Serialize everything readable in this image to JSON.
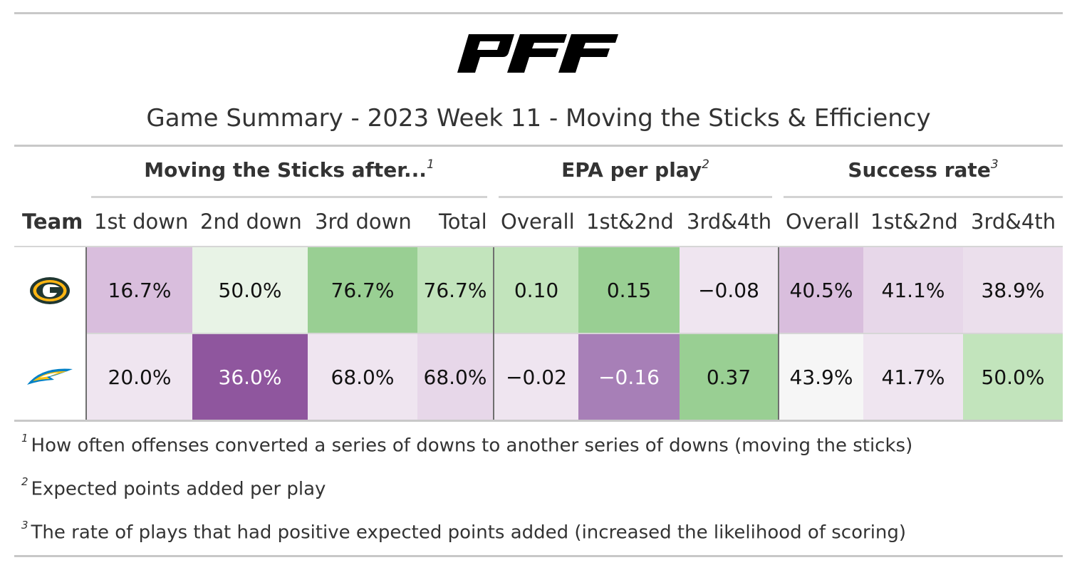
{
  "brand": {
    "name": "PFF"
  },
  "title": "Game Summary - 2023 Week 11 - Moving the Sticks & Efficiency",
  "spanners": [
    {
      "label": "Moving the Sticks after...",
      "note": "1"
    },
    {
      "label": "EPA per play",
      "note": "2"
    },
    {
      "label": "Success rate",
      "note": "3"
    }
  ],
  "columns": [
    "Team",
    "1st down",
    "2nd down",
    "3rd down",
    "Total",
    "Overall",
    "1st&2nd",
    "3rd&4th",
    "Overall",
    "1st&2nd",
    "3rd&4th"
  ],
  "rows": [
    {
      "team_icon": "packers-logo-icon",
      "values": [
        "16.7%",
        "50.0%",
        "76.7%",
        "76.7%",
        "0.10",
        "0.15",
        "−0.08",
        "40.5%",
        "41.1%",
        "38.9%"
      ],
      "fills": [
        "#d9bedd",
        "#e8f3e6",
        "#99cf93",
        "#c2e4bc",
        "#c2e4bc",
        "#99cf93",
        "#efe5f0",
        "#d9bedd",
        "#e7d7e9",
        "#ebdfec"
      ]
    },
    {
      "team_icon": "chargers-logo-icon",
      "values": [
        "20.0%",
        "36.0%",
        "68.0%",
        "68.0%",
        "−0.02",
        "−0.16",
        "0.37",
        "43.9%",
        "41.7%",
        "50.0%"
      ],
      "fills": [
        "#efe5f0",
        "#8f569e",
        "#efe5f0",
        "#e7d7e9",
        "#efe5f0",
        "#a77fb7",
        "#99cf93",
        "#f6f6f6",
        "#efe5f0",
        "#c2e4bc"
      ]
    }
  ],
  "dark_cells": [
    [
      1,
      1
    ],
    [
      1,
      5
    ]
  ],
  "footnotes": [
    {
      "mark": "1",
      "text": "How often offenses converted a series of downs to another series of downs (moving the sticks)"
    },
    {
      "mark": "2",
      "text": "Expected points added per play"
    },
    {
      "mark": "3",
      "text": "The rate of plays that had positive expected points added (increased the likelihood of scoring)"
    }
  ],
  "colors": {
    "packers_green": "#203731",
    "packers_gold": "#ffb612",
    "chargers_blue": "#0080c6",
    "chargers_gold": "#ffc20e"
  }
}
